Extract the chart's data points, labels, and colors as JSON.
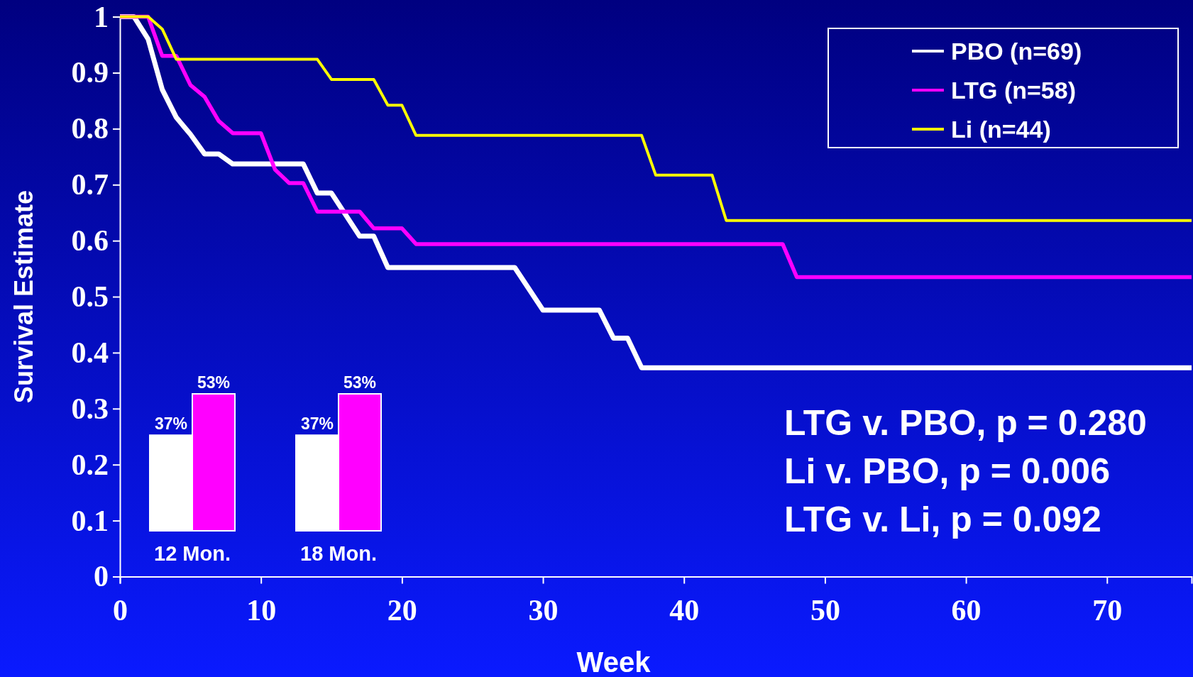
{
  "chart_data": [
    {
      "type": "line",
      "xlabel": "Week",
      "ylabel": "Survival Estimate",
      "xlim": [
        0,
        76
      ],
      "ylim": [
        0,
        1
      ],
      "xticks": [
        0,
        10,
        20,
        30,
        40,
        50,
        60,
        70
      ],
      "yticks": [
        0,
        0.1,
        0.2,
        0.3,
        0.4,
        0.5,
        0.6,
        0.7,
        0.8,
        0.9,
        1
      ],
      "legend": "top right",
      "grid": false,
      "series": [
        {
          "name": "PBO (n=69)",
          "color": "#ffffff",
          "x": [
            0,
            1,
            2,
            3,
            4,
            5,
            6,
            7,
            8,
            13,
            14,
            15,
            17,
            18,
            19,
            28,
            30,
            34,
            35,
            36,
            37,
            76
          ],
          "values": [
            1,
            1,
            0.96,
            0.87,
            0.82,
            0.79,
            0.755,
            0.755,
            0.737,
            0.737,
            0.685,
            0.685,
            0.608,
            0.608,
            0.552,
            0.552,
            0.476,
            0.476,
            0.426,
            0.426,
            0.373,
            0.373
          ]
        },
        {
          "name": "LTG (n=58)",
          "color": "#ff00ff",
          "x": [
            0,
            2,
            3,
            4,
            5,
            6,
            7,
            8,
            10,
            11,
            12,
            13,
            14,
            17,
            18,
            20,
            21,
            47,
            48,
            76
          ],
          "values": [
            1,
            1,
            0.93,
            0.93,
            0.878,
            0.857,
            0.814,
            0.792,
            0.792,
            0.727,
            0.703,
            0.703,
            0.652,
            0.652,
            0.622,
            0.622,
            0.594,
            0.594,
            0.535,
            0.535
          ]
        },
        {
          "name": "Li (n=44)",
          "color": "#ffff00",
          "x": [
            0,
            2,
            3,
            4,
            14,
            15,
            18,
            19,
            20,
            21,
            37,
            38,
            42,
            43,
            76
          ],
          "values": [
            1,
            1,
            0.978,
            0.924,
            0.924,
            0.888,
            0.888,
            0.842,
            0.842,
            0.788,
            0.788,
            0.717,
            0.717,
            0.636,
            0.636
          ]
        }
      ],
      "annotations": [
        "LTG v. PBO, p = 0.280",
        "Li v. PBO, p = 0.006",
        "LTG v. Li, p = 0.092"
      ]
    },
    {
      "type": "bar",
      "xlabel": "12 Mon.",
      "categories": [
        null,
        null
      ],
      "values": [
        37,
        53
      ],
      "colors": [
        "#ffffff",
        "#ff00ff"
      ],
      "value_labels": [
        "37%",
        "53%"
      ]
    },
    {
      "type": "bar",
      "xlabel": "18 Mon.",
      "categories": [
        null,
        null
      ],
      "values": [
        37,
        53
      ],
      "colors": [
        "#ffffff",
        "#ff00ff"
      ],
      "value_labels": [
        "37%",
        "53%"
      ]
    }
  ]
}
